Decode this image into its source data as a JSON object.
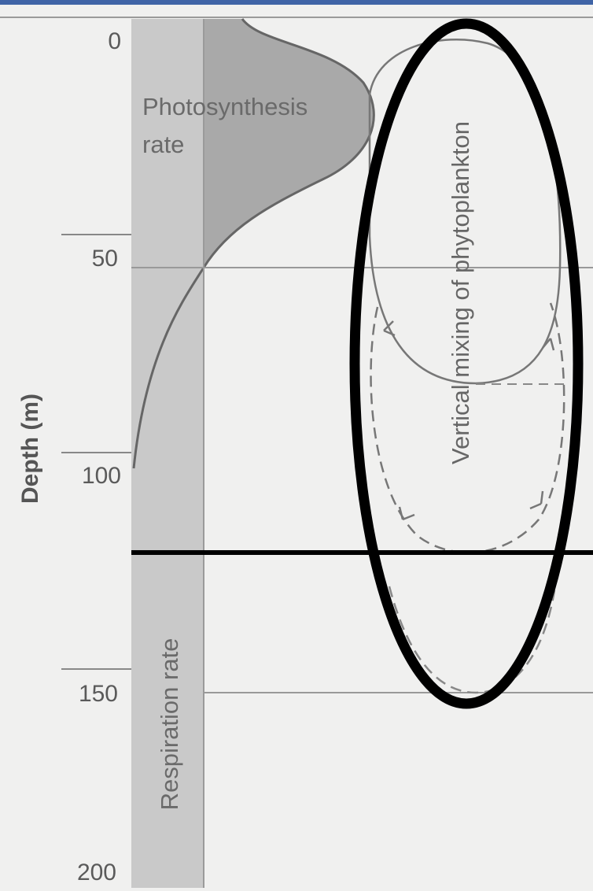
{
  "figure": {
    "axis": {
      "title": "Depth (m)",
      "ticks": [
        "0",
        "50",
        "100",
        "150",
        "200"
      ]
    },
    "photosynthesis_label_line1": "Photosynthesis",
    "photosynthesis_label_line2": "rate",
    "respiration_label": "Respiration rate",
    "mixing_label": "Vertical mixing of phytoplankton"
  },
  "colors": {
    "background": "#f0f0ef",
    "band_fill": "#c9c9c9",
    "photosynthesis_fill": "#a9a9a9",
    "curve_stroke": "#666666",
    "annotation_stroke": "#000000",
    "top_bar": "#3f64a6"
  }
}
